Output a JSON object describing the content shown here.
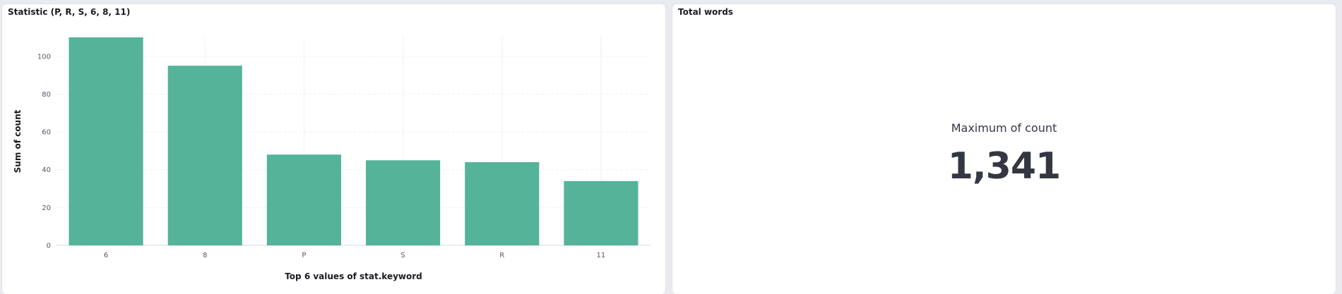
{
  "panels": {
    "left": {
      "title": "Statistic (P, R, S, 6, 8, 11)"
    },
    "right": {
      "title": "Total words",
      "metric_label": "Maximum of count",
      "metric_value": "1,341"
    }
  },
  "chart_data": {
    "type": "bar",
    "categories": [
      "6",
      "8",
      "P",
      "S",
      "R",
      "11"
    ],
    "values": [
      111,
      95,
      48,
      45,
      44,
      34
    ],
    "xlabel": "Top 6 values of stat.keyword",
    "ylabel": "Sum of count",
    "ylim": [
      0,
      110
    ],
    "yticks": [
      0,
      20,
      40,
      60,
      80,
      100
    ],
    "grid": true,
    "colors": {
      "bar": "#54b399",
      "grid": "#eef0f3",
      "axis": "#d3dae6"
    }
  }
}
